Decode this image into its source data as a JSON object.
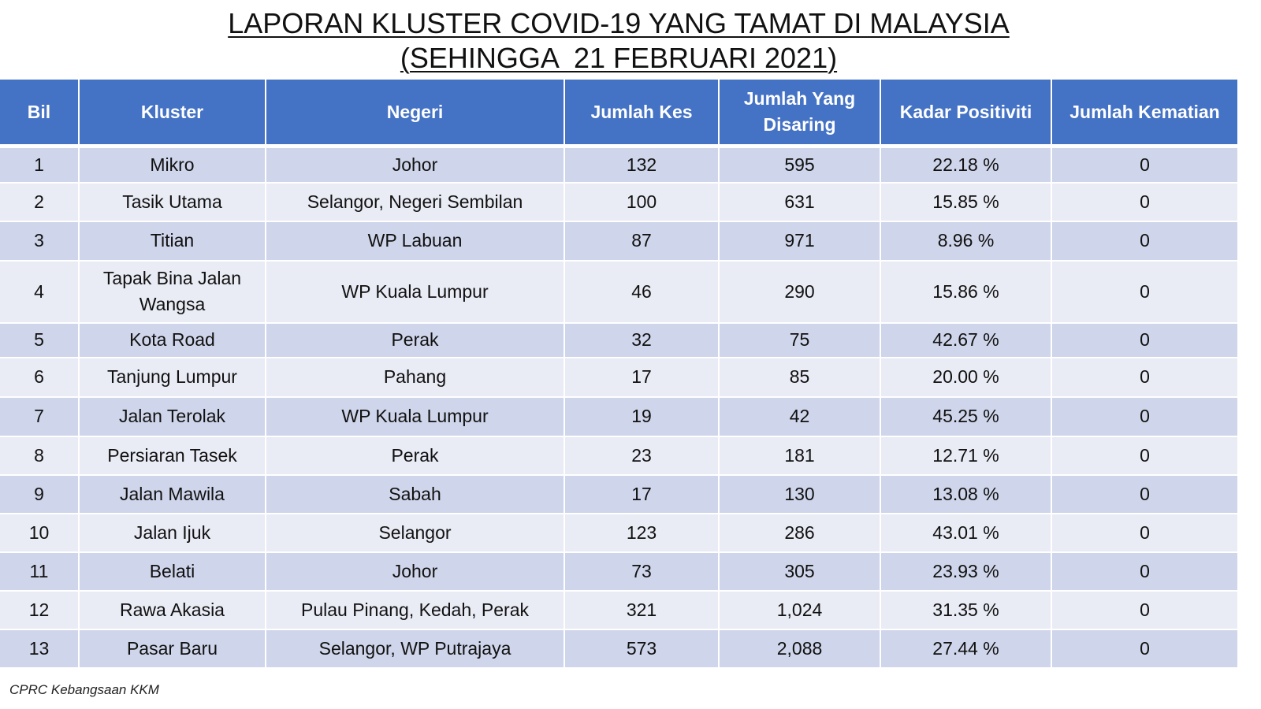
{
  "title": {
    "line1": "LAPORAN KLUSTER COVID-19 YANG TAMAT DI MALAYSIA",
    "line2": "(SEHINGGA  21 FEBRUARI 2021)"
  },
  "table": {
    "headers": [
      "Bil",
      "Kluster",
      "Negeri",
      "Jumlah Kes",
      "Jumlah Yang Disaring",
      "Kadar Positiviti",
      "Jumlah Kematian"
    ],
    "rows": [
      [
        "1",
        "Mikro",
        "Johor",
        "132",
        "595",
        "22.18 %",
        "0"
      ],
      [
        "2",
        "Tasik Utama",
        "Selangor, Negeri Sembilan",
        "100",
        "631",
        "15.85 %",
        "0"
      ],
      [
        "3",
        "Titian",
        "WP Labuan",
        "87",
        "971",
        "8.96 %",
        "0"
      ],
      [
        "4",
        "Tapak Bina Jalan Wangsa",
        "WP Kuala Lumpur",
        "46",
        "290",
        "15.86 %",
        "0"
      ],
      [
        "5",
        "Kota Road",
        "Perak",
        "32",
        "75",
        "42.67 %",
        "0"
      ],
      [
        "6",
        "Tanjung Lumpur",
        "Pahang",
        "17",
        "85",
        "20.00 %",
        "0"
      ],
      [
        "7",
        "Jalan Terolak",
        "WP Kuala Lumpur",
        "19",
        "42",
        "45.25 %",
        "0"
      ],
      [
        "8",
        "Persiaran Tasek",
        "Perak",
        "23",
        "181",
        "12.71 %",
        "0"
      ],
      [
        "9",
        "Jalan Mawila",
        "Sabah",
        "17",
        "130",
        "13.08 %",
        "0"
      ],
      [
        "10",
        "Jalan Ijuk",
        "Selangor",
        "123",
        "286",
        "43.01 %",
        "0"
      ],
      [
        "11",
        "Belati",
        "Johor",
        "73",
        "305",
        "23.93 %",
        "0"
      ],
      [
        "12",
        "Rawa Akasia",
        "Pulau Pinang, Kedah, Perak",
        "321",
        "1,024",
        "31.35 %",
        "0"
      ],
      [
        "13",
        "Pasar Baru",
        "Selangor, WP Putrajaya",
        "573",
        "2,088",
        "27.44 %",
        "0"
      ]
    ]
  },
  "footer": "CPRC Kebangsaan KKM",
  "colors": {
    "header_bg": "#4472c4",
    "row_dark": "#cfd5ea",
    "row_light": "#e9ebf5"
  }
}
